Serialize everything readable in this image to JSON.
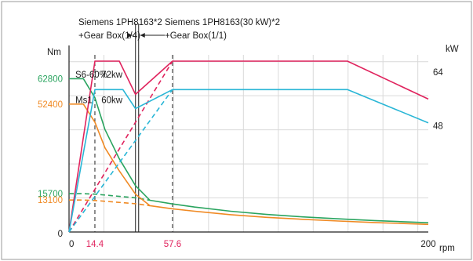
{
  "chart_data": {
    "type": "line",
    "left_unit": "Nm",
    "right_unit": "kW",
    "x_unit": "rpm",
    "x_ticks": [
      {
        "value": 0,
        "label": "0",
        "color": "#222222"
      },
      {
        "value": 14.4,
        "label": "14.4",
        "color": "#e0245e"
      },
      {
        "value": 57.6,
        "label": "57.6",
        "color": "#e0245e"
      },
      {
        "value": 200,
        "label": "200",
        "color": "#222222"
      }
    ],
    "y_left_ticks": [
      {
        "value": 62800,
        "label": "62800",
        "color": "#2aa45f"
      },
      {
        "value": 52400,
        "label": "52400",
        "color": "#f08a24"
      },
      {
        "value": 15700,
        "label": "15700",
        "color": "#2aa45f"
      },
      {
        "value": 13100,
        "label": "13100",
        "color": "#f08a24"
      },
      {
        "value": 0,
        "label": "0",
        "color": "#222222"
      }
    ],
    "y_right_ticks": [
      {
        "value": 64,
        "label": "64",
        "color": "#222222"
      },
      {
        "value": 48,
        "label": "48",
        "color": "#222222"
      }
    ],
    "xlim": [
      0,
      200
    ],
    "ylim_left": [
      0,
      70000
    ],
    "ylim_right": [
      0,
      72
    ],
    "grid": true,
    "regions": [
      {
        "boundary": 37,
        "label_line1": "Siemens 1PH8163*2",
        "label_line2": "+Gear Box(1/4)",
        "side": "left"
      },
      {
        "boundary": 37,
        "label_line1": "Siemens 1PH8163(30 kW)*2",
        "label_line2": "+Gear Box(1/1)",
        "side": "right"
      }
    ],
    "annotations": [
      {
        "text": "S6-60%",
        "x": 3.5,
        "y_left": 63200
      },
      {
        "text": "72kw",
        "x": 18,
        "y_left": 63200
      },
      {
        "text": "60kw",
        "x": 18,
        "y_left": 52800
      },
      {
        "text": "Ms1",
        "x": 3.5,
        "y_left": 52800
      }
    ],
    "series": [
      {
        "color": "#2aa45f",
        "axis": "left",
        "style": "solid",
        "x": [
          0,
          8,
          14.4,
          20,
          28,
          37,
          45,
          57.6,
          70,
          90,
          110,
          130,
          150,
          170,
          200
        ],
        "y": [
          62800,
          62800,
          55000,
          42000,
          30000,
          19000,
          13000,
          11500,
          10200,
          8500,
          7200,
          6200,
          5400,
          4700,
          3800
        ]
      },
      {
        "color": "#2aa45f",
        "axis": "left",
        "style": "dashed",
        "x": [
          0,
          8,
          14.4,
          25,
          37,
          45
        ],
        "y": [
          15700,
          15700,
          15500,
          14800,
          14000,
          13000
        ]
      },
      {
        "color": "#f08a24",
        "axis": "left",
        "style": "solid",
        "x": [
          0,
          8,
          14.4,
          20,
          28,
          37,
          45,
          57.6,
          70,
          90,
          110,
          130,
          150,
          170,
          200
        ],
        "y": [
          52400,
          52400,
          45000,
          34500,
          25000,
          15500,
          10800,
          9500,
          8500,
          7100,
          6000,
          5200,
          4500,
          3900,
          3100
        ]
      },
      {
        "color": "#f08a24",
        "axis": "left",
        "style": "dashed",
        "x": [
          0,
          8,
          14.4,
          25,
          37,
          45
        ],
        "y": [
          13100,
          13100,
          12900,
          12300,
          11600,
          10800
        ]
      },
      {
        "color": "#e0245e",
        "axis": "right",
        "style": "solid",
        "x": [
          0,
          14.4,
          28,
          37,
          57.6,
          155,
          200
        ],
        "y": [
          0,
          72,
          72,
          58,
          72,
          72,
          56
        ]
      },
      {
        "color": "#e0245e",
        "axis": "right",
        "style": "dashed",
        "x": [
          0,
          57.6
        ],
        "y": [
          0,
          72
        ]
      },
      {
        "color": "#29b6d6",
        "axis": "right",
        "style": "solid",
        "x": [
          0,
          14.4,
          30,
          37,
          57.6,
          155,
          200
        ],
        "y": [
          0,
          60,
          60,
          52,
          60,
          60,
          46
        ]
      },
      {
        "color": "#29b6d6",
        "axis": "right",
        "style": "dashed",
        "x": [
          0,
          57.6
        ],
        "y": [
          0,
          60
        ]
      }
    ]
  }
}
